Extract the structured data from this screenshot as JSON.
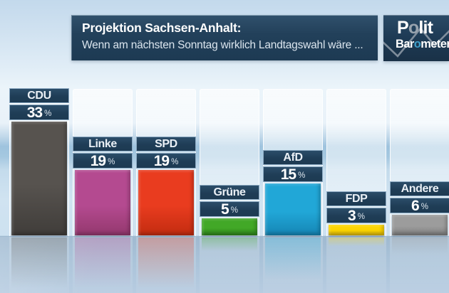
{
  "header": {
    "title": "Projektion Sachsen-Anhalt:",
    "subtitle": "Wenn am nächsten Sonntag wirklich Landtagswahl wäre ..."
  },
  "logo": {
    "line1": "Polit",
    "line2": "Barometer",
    "accent_letter": "o",
    "line1_accent_color": "#98a3ae",
    "line2_accent_color": "#3f9fca",
    "zigzag_color": "#8b97a4"
  },
  "chart_data": {
    "type": "bar",
    "orientation": "vertical",
    "title": "Projektion Sachsen-Anhalt:",
    "subtitle": "Wenn am nächsten Sonntag wirklich Landtagswahl wäre ...",
    "unit": "%",
    "categories": [
      "CDU",
      "Linke",
      "SPD",
      "Grüne",
      "AfD",
      "FDP",
      "Andere"
    ],
    "values": [
      33,
      19,
      19,
      5,
      15,
      3,
      6
    ],
    "bar_colors": [
      "#57534f",
      "#b44a90",
      "#e93c1f",
      "#42a827",
      "#21a7d7",
      "#fdd501",
      "#9c9c9c"
    ],
    "bar_colors_dark": [
      "#403d3a",
      "#93386d",
      "#c22c10",
      "#2f851b",
      "#1585b4",
      "#d9b40b",
      "#7f7f7f"
    ],
    "label_box_color": "#1e3c55",
    "value_label_position": "above",
    "ylim": [
      0,
      35
    ],
    "grid": false,
    "legend": false
  }
}
